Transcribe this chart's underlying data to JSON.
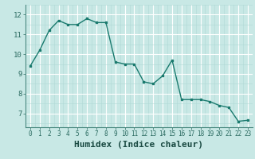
{
  "x": [
    0,
    1,
    2,
    3,
    4,
    5,
    6,
    7,
    8,
    9,
    10,
    11,
    12,
    13,
    14,
    15,
    16,
    17,
    18,
    19,
    20,
    21,
    22,
    23
  ],
  "y": [
    9.4,
    10.2,
    11.2,
    11.7,
    11.5,
    11.5,
    11.8,
    11.6,
    11.6,
    9.6,
    9.5,
    9.5,
    8.6,
    8.5,
    8.9,
    9.7,
    7.7,
    7.7,
    7.7,
    7.6,
    7.4,
    7.3,
    6.6,
    6.65
  ],
  "line_color": "#1a7a6e",
  "marker_color": "#1a7a6e",
  "bg_color": "#c8e8e5",
  "grid_major_color": "#ffffff",
  "grid_minor_color": "#b0d8d5",
  "xlabel": "Humidex (Indice chaleur)",
  "xlabel_fontsize": 8,
  "ylabel_ticks": [
    7,
    8,
    9,
    10,
    11,
    12
  ],
  "xtick_labels": [
    "0",
    "1",
    "2",
    "3",
    "4",
    "5",
    "6",
    "7",
    "8",
    "9",
    "10",
    "11",
    "12",
    "13",
    "14",
    "15",
    "16",
    "17",
    "18",
    "19",
    "20",
    "21",
    "22",
    "23"
  ],
  "ylim": [
    6.3,
    12.5
  ],
  "xlim": [
    -0.5,
    23.5
  ],
  "ytick_fontsize": 6.5,
  "xtick_fontsize": 5.5,
  "axis_color": "#4a8a80",
  "tick_color": "#2a6a60",
  "xlabel_color": "#1a4a42"
}
